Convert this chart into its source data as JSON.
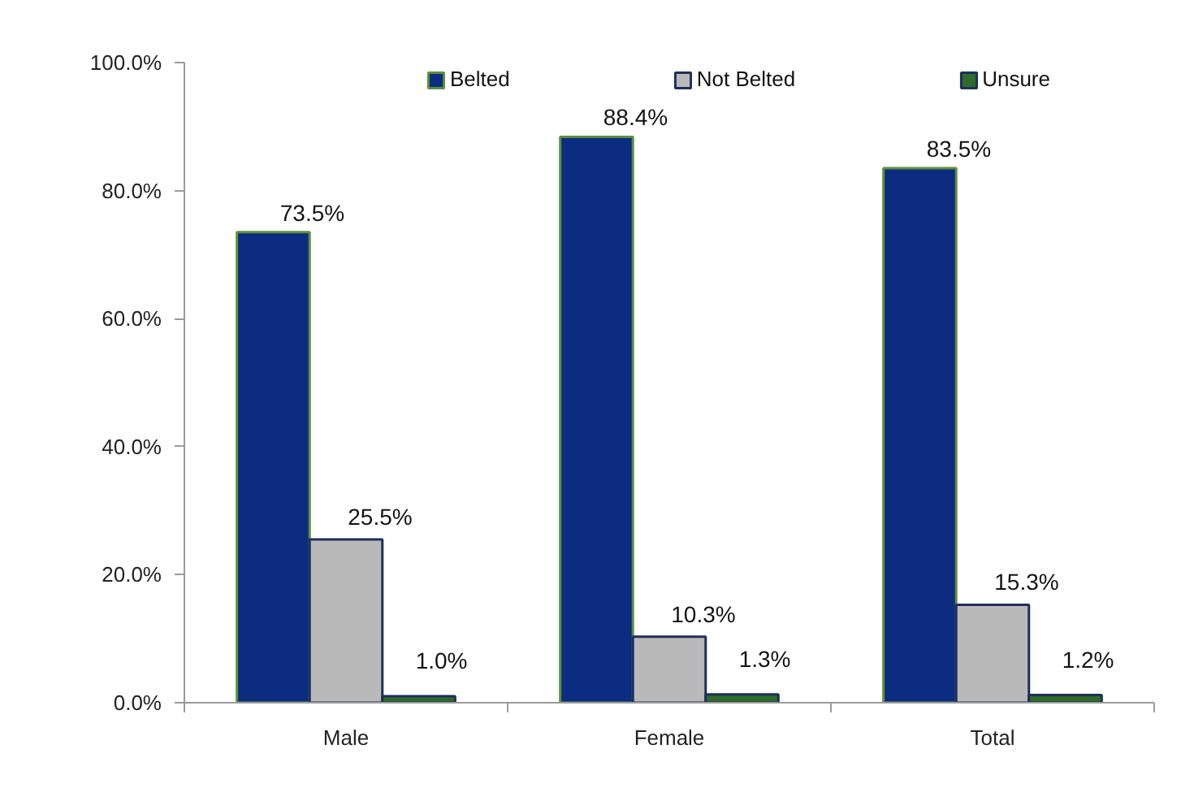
{
  "chart_data": {
    "type": "bar",
    "categories": [
      "Male",
      "Female",
      "Total"
    ],
    "series": [
      {
        "name": "Belted",
        "color": "#0b2c80",
        "values": [
          73.5,
          88.4,
          83.5
        ],
        "value_labels": [
          "73.5%",
          "88.4%",
          "83.5%"
        ]
      },
      {
        "name": "Not Belted",
        "color": "#b9b9b9",
        "values": [
          25.5,
          10.3,
          15.3
        ],
        "value_labels": [
          "25.5%",
          "10.3%",
          "15.3%"
        ]
      },
      {
        "name": "Unsure",
        "color": "#2f6b2a",
        "values": [
          1.0,
          1.3,
          1.2
        ],
        "value_labels": [
          "1.0%",
          "1.3%",
          "1.2%"
        ]
      }
    ],
    "ylim": [
      0,
      100
    ],
    "yticks": [
      {
        "value": 0,
        "label": "0.0%"
      },
      {
        "value": 20,
        "label": "20.0%"
      },
      {
        "value": 40,
        "label": "40.0%"
      },
      {
        "value": 60,
        "label": "60.0%"
      },
      {
        "value": 80,
        "label": "80.0%"
      },
      {
        "value": 100,
        "label": "100.0%"
      }
    ],
    "legend": "top"
  }
}
